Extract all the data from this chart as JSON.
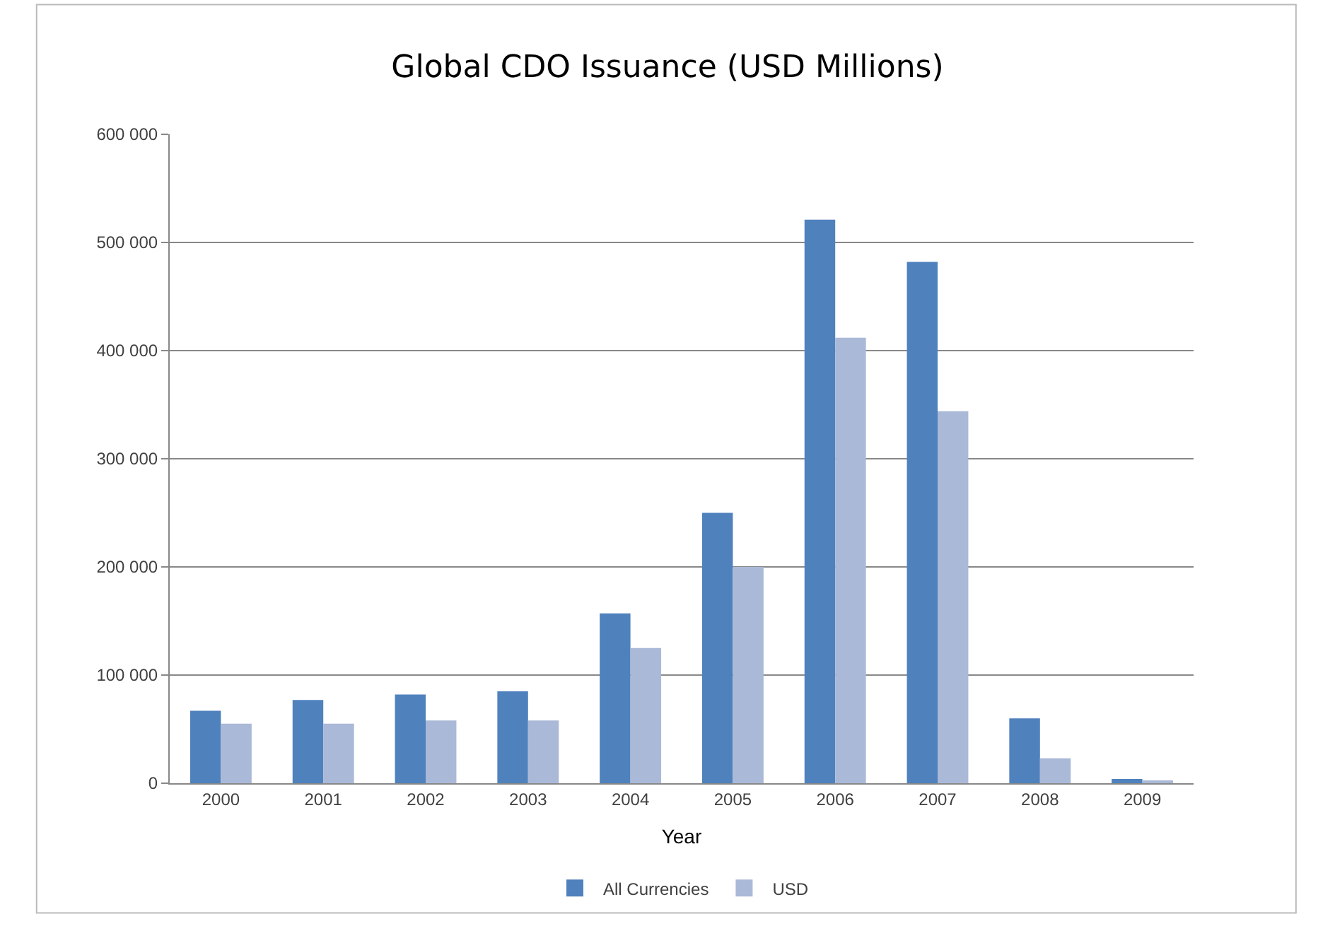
{
  "chart_data": {
    "type": "bar",
    "title": "Global CDO Issuance (USD Millions)",
    "xlabel": "Year",
    "categories": [
      "2000",
      "2001",
      "2002",
      "2003",
      "2004",
      "2005",
      "2006",
      "2007",
      "2008",
      "2009"
    ],
    "series": [
      {
        "name": "All Currencies",
        "color": "#4f81bd",
        "values": [
          67000,
          77000,
          82000,
          85000,
          157000,
          250000,
          521000,
          482000,
          60000,
          4000
        ]
      },
      {
        "name": "USD",
        "color": "#aab9d7",
        "values": [
          55000,
          55000,
          58000,
          58000,
          125000,
          200000,
          412000,
          344000,
          23000,
          2000
        ]
      }
    ],
    "ylim": [
      0,
      600000
    ],
    "yticks": [
      {
        "value": 0,
        "label": "0"
      },
      {
        "value": 100000,
        "label": "100 000"
      },
      {
        "value": 200000,
        "label": "200 000"
      },
      {
        "value": 300000,
        "label": "300 000"
      },
      {
        "value": 400000,
        "label": "400 000"
      },
      {
        "value": 500000,
        "label": "500 000"
      },
      {
        "value": 600000,
        "label": "600 000"
      }
    ],
    "grid": "y",
    "legend": "bottom"
  }
}
